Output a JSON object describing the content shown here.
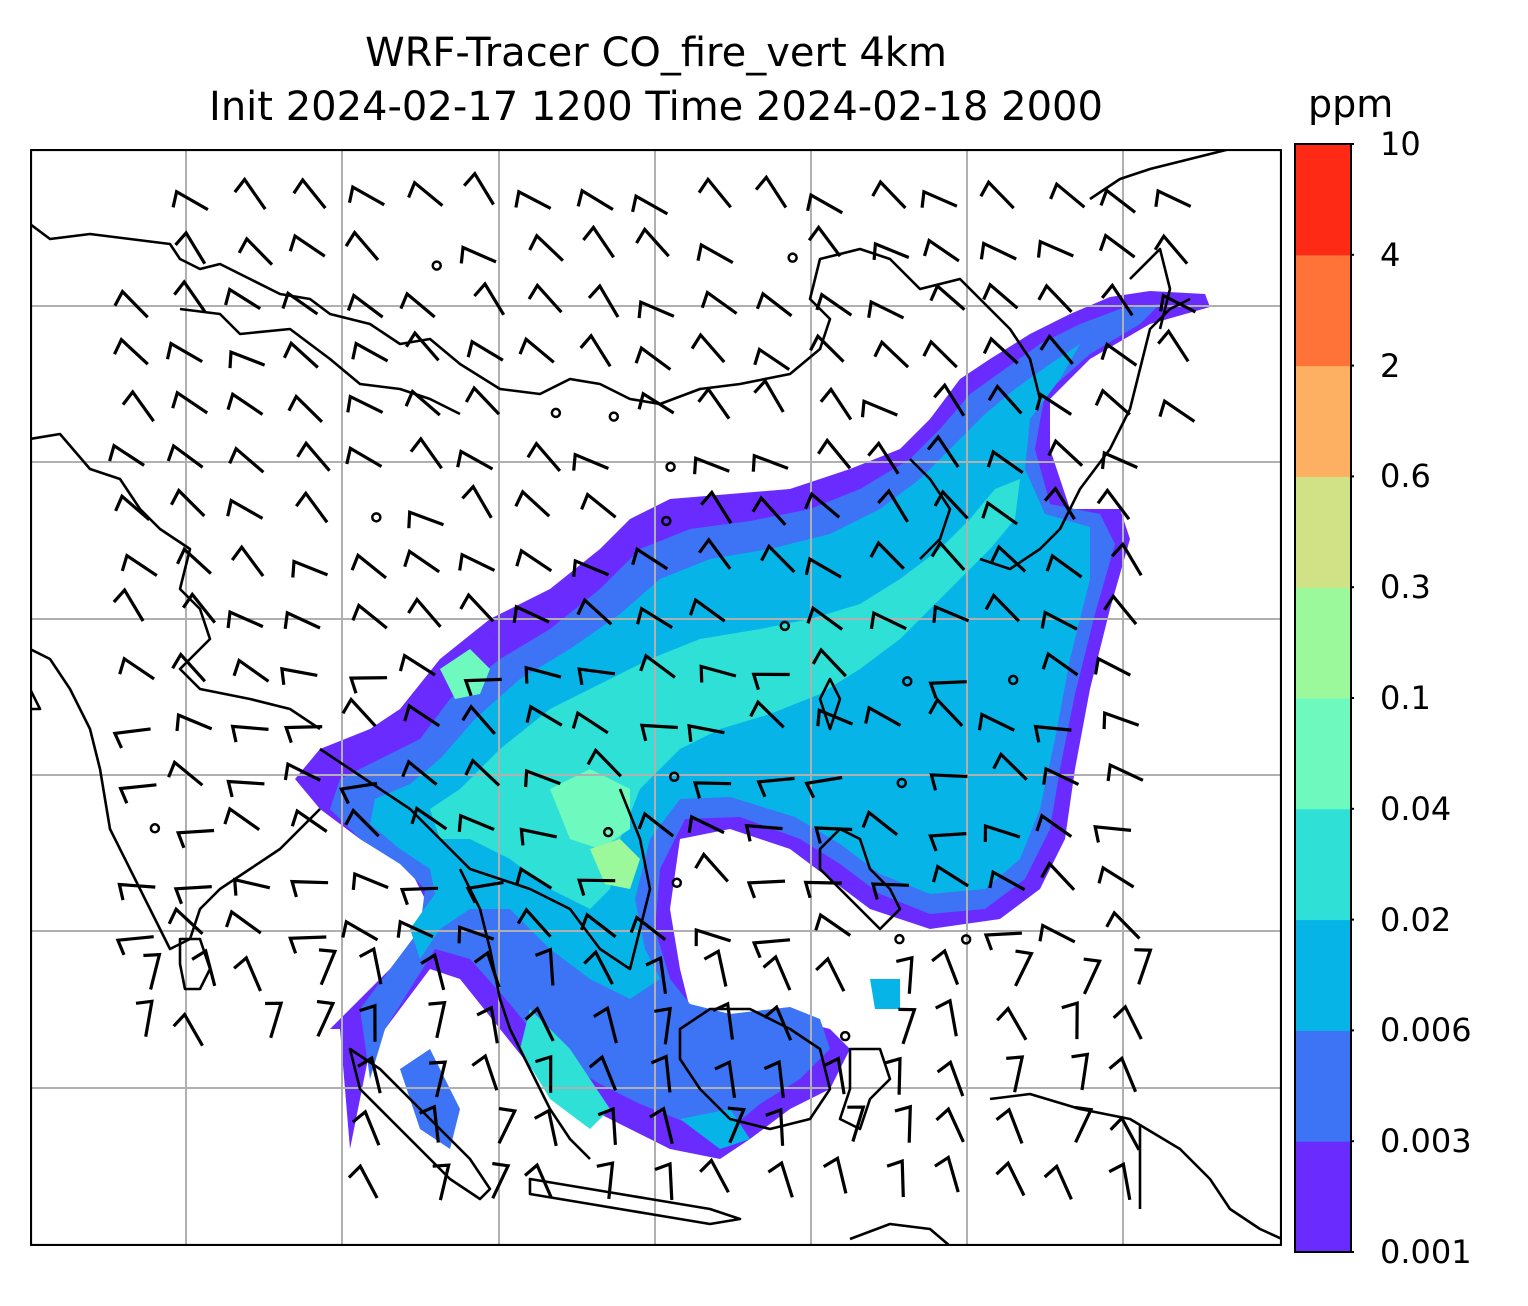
{
  "title": {
    "line1": "WRF-Tracer CO_fire_vert 4km",
    "line2": "Init 2024-02-17 1200 Time 2024-02-18 2000"
  },
  "colorbar": {
    "unit": "ppm",
    "ticks": [
      "0.001",
      "0.003",
      "0.006",
      "0.02",
      "0.04",
      "0.1",
      "0.3",
      "0.6",
      "2",
      "4",
      "10"
    ],
    "colors": [
      "#6a2bff",
      "#3d73f5",
      "#07b4e8",
      "#2fe0d6",
      "#6ef9bf",
      "#9cf99b",
      "#d1e286",
      "#fdb062",
      "#ff7338",
      "#ff2a16"
    ]
  },
  "map": {
    "coastline_color": "#000000",
    "grid_color": "#b0b0b0",
    "barb_color": "#000000"
  }
}
